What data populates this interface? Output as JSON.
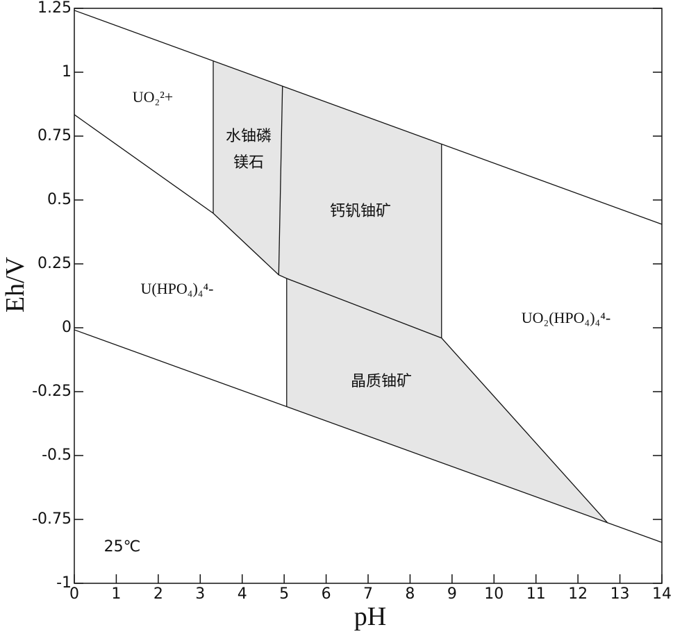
{
  "chart_data": {
    "type": "eh-ph",
    "x_label": "pH",
    "y_label": "Eh/V",
    "xlim": [
      0,
      14
    ],
    "ylim": [
      -1,
      1.25
    ],
    "xticks": [
      0,
      1,
      2,
      3,
      4,
      5,
      6,
      7,
      8,
      9,
      10,
      11,
      12,
      13,
      14
    ],
    "yticks": [
      -1,
      -0.75,
      -0.5,
      -0.25,
      0,
      0.25,
      0.5,
      0.75,
      1,
      1.25
    ],
    "region_color": "#e6e6e6",
    "regions": [
      {
        "label": [
          "水铀磷",
          "镁石"
        ],
        "x": [
          3.31,
          4.96,
          4.87,
          3.31
        ],
        "y": [
          1.043,
          0.946,
          0.207,
          0.448
        ]
      },
      {
        "label": [
          "钙钒铀矿"
        ],
        "x": [
          4.96,
          8.75,
          8.75,
          5.06,
          4.87
        ],
        "y": [
          0.946,
          0.717,
          -0.04,
          0.193,
          0.207
        ]
      },
      {
        "label": [
          "晶质铀矿"
        ],
        "x": [
          5.06,
          8.75,
          12.71,
          5.06
        ],
        "y": [
          0.193,
          -0.04,
          -0.764,
          -0.307
        ]
      }
    ],
    "boundaries": [
      {
        "x": [
          0,
          14
        ],
        "y": [
          1.242,
          0.405
        ]
      },
      {
        "x": [
          0,
          14
        ],
        "y": [
          -0.008,
          -0.84
        ]
      },
      {
        "x": [
          0,
          3.31,
          4.87,
          5.06,
          8.75,
          12.71
        ],
        "y": [
          0.834,
          0.448,
          0.207,
          0.193,
          -0.04,
          -0.764
        ]
      },
      {
        "x": [
          3.31,
          3.31
        ],
        "y": [
          1.043,
          0.448
        ]
      },
      {
        "x": [
          4.96,
          4.87
        ],
        "y": [
          0.946,
          0.207
        ]
      },
      {
        "x": [
          5.06,
          5.06
        ],
        "y": [
          0.193,
          -0.307
        ]
      },
      {
        "x": [
          8.75,
          8.75
        ],
        "y": [
          0.717,
          -0.04
        ]
      }
    ],
    "fields": [
      "UO₂²+",
      "U(HPO₄)₄⁴-",
      "UO₂(HPO₄)₄⁴-"
    ],
    "annotation": "25℃"
  }
}
